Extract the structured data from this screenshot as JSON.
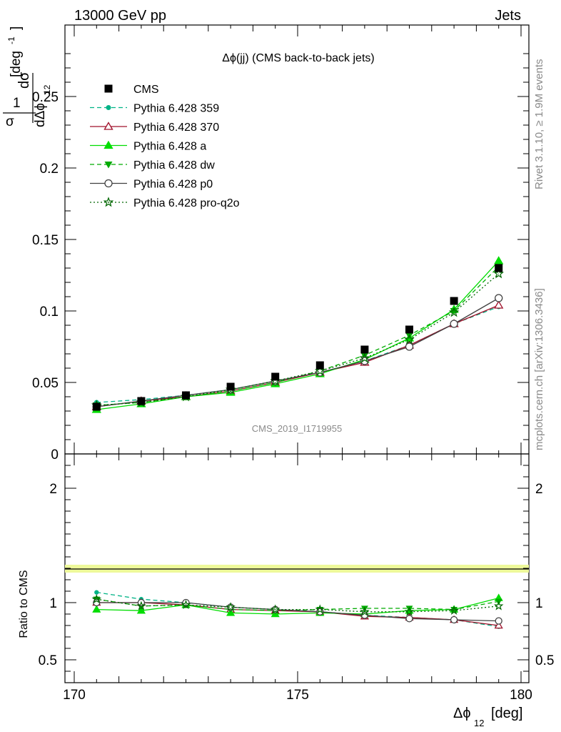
{
  "header": {
    "left": "13000 GeV pp",
    "right": "Jets"
  },
  "side_labels": {
    "rivet": "Rivet 3.1.10, ≥ 1.9M events",
    "mcplots": "mcplots.cern.ch [arXiv:1306.3436]"
  },
  "chart_data": {
    "type": "scatter",
    "title": "Δϕ(jj) (CMS back-to-back jets)",
    "watermark": "CMS_2019_I1719955",
    "xlabel": "Δϕ",
    "xlabel_sub": "12",
    "xlabel_unit": "[deg]",
    "ylabel_main": "1/σ dσ/dΔϕ_12 [deg^-1]",
    "ylabel_ratio": "Ratio to CMS",
    "xlim": [
      170,
      180
    ],
    "ylim_main": [
      0,
      0.3
    ],
    "ylim_ratio": [
      0.3,
      2.3
    ],
    "x_ticks": [
      "170",
      "175",
      "180"
    ],
    "y_ticks_main": [
      "0",
      "0.05",
      "0.1",
      "0.15",
      "0.2",
      "0.25"
    ],
    "y_ticks_ratio": [
      "0.5",
      "1",
      "2"
    ],
    "x": [
      170.5,
      171.5,
      172.5,
      173.5,
      174.5,
      175.5,
      176.5,
      177.5,
      178.5,
      179.5
    ],
    "reference": {
      "name": "CMS",
      "color": "#000000",
      "values": [
        0.033,
        0.037,
        0.041,
        0.047,
        0.054,
        0.062,
        0.073,
        0.087,
        0.107,
        0.13
      ]
    },
    "series": [
      {
        "name": "Pythia 6.428 359",
        "color": "#00b386",
        "style": "dashed",
        "marker": "dot",
        "values": [
          0.036,
          0.038,
          0.041,
          0.045,
          0.051,
          0.057,
          0.065,
          0.076,
          0.091,
          0.103
        ]
      },
      {
        "name": "Pythia 6.428 370",
        "color": "#a0102a",
        "style": "solid",
        "marker": "triangle-open",
        "values": [
          0.033,
          0.037,
          0.04,
          0.044,
          0.05,
          0.057,
          0.064,
          0.076,
          0.091,
          0.104
        ]
      },
      {
        "name": "Pythia 6.428 a",
        "color": "#00dd00",
        "style": "solid",
        "marker": "triangle",
        "values": [
          0.031,
          0.035,
          0.04,
          0.043,
          0.049,
          0.056,
          0.066,
          0.081,
          0.101,
          0.135
        ]
      },
      {
        "name": "Pythia 6.428 dw",
        "color": "#00aa00",
        "style": "dashed",
        "marker": "triangle-down",
        "values": [
          0.034,
          0.036,
          0.04,
          0.044,
          0.05,
          0.058,
          0.069,
          0.083,
          0.1,
          0.131
        ]
      },
      {
        "name": "Pythia 6.428 p0",
        "color": "#404040",
        "style": "solid",
        "marker": "circle-open",
        "values": [
          0.033,
          0.037,
          0.041,
          0.045,
          0.051,
          0.057,
          0.065,
          0.075,
          0.091,
          0.109
        ]
      },
      {
        "name": "Pythia 6.428 pro-q2o",
        "color": "#006600",
        "style": "dotted",
        "marker": "star",
        "values": [
          0.034,
          0.036,
          0.04,
          0.045,
          0.051,
          0.058,
          0.067,
          0.08,
          0.099,
          0.126
        ]
      }
    ],
    "ratios": [
      [
        1.09,
        1.03,
        1.0,
        0.96,
        0.94,
        0.92,
        0.89,
        0.87,
        0.85,
        0.79
      ],
      [
        1.0,
        1.0,
        0.98,
        0.94,
        0.93,
        0.92,
        0.88,
        0.87,
        0.85,
        0.8
      ],
      [
        0.94,
        0.93,
        0.98,
        0.91,
        0.9,
        0.91,
        0.9,
        0.93,
        0.94,
        1.04
      ],
      [
        1.03,
        0.97,
        0.98,
        0.94,
        0.93,
        0.94,
        0.95,
        0.95,
        0.94,
        1.01
      ],
      [
        1.0,
        1.0,
        1.0,
        0.96,
        0.94,
        0.92,
        0.89,
        0.86,
        0.85,
        0.84
      ],
      [
        1.03,
        0.97,
        0.98,
        0.96,
        0.94,
        0.94,
        0.92,
        0.92,
        0.93,
        0.97
      ]
    ],
    "legend_position": "top-left",
    "grid": false
  }
}
